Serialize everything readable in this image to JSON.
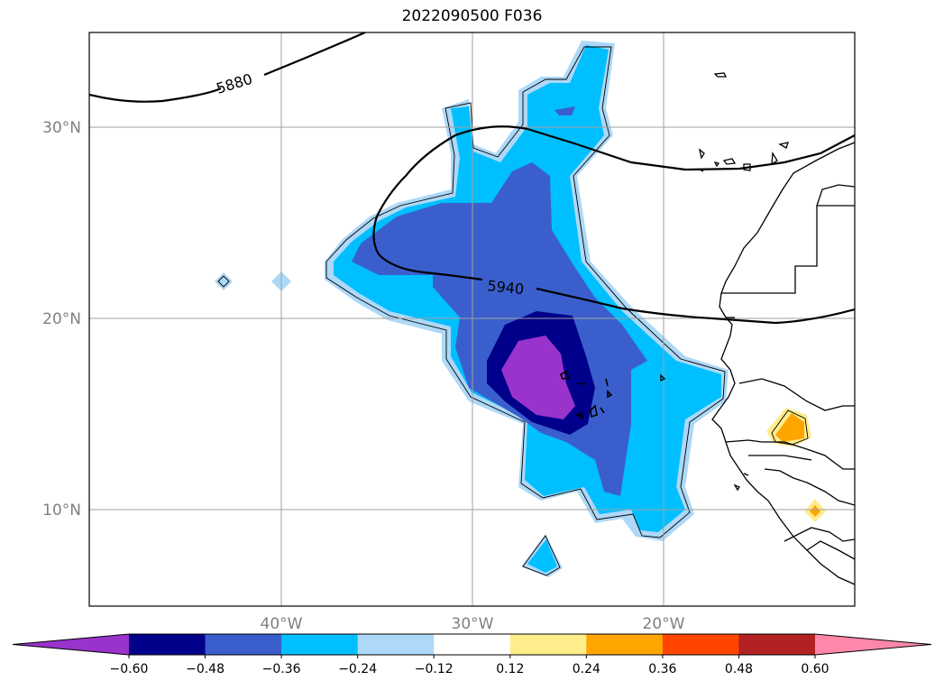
{
  "title": "2022090500 F036",
  "map": {
    "lat_labels": [
      "30°N",
      "20°N",
      "10°N"
    ],
    "lon_labels": [
      "40°W",
      "30°W",
      "20°W"
    ],
    "contour_labels": [
      "5880",
      "5940"
    ]
  },
  "colorbar": {
    "tick_labels": [
      "−0.60",
      "−0.48",
      "−0.36",
      "−0.24",
      "−0.12",
      "0.12",
      "0.24",
      "0.36",
      "0.48",
      "0.60"
    ],
    "colors": [
      "#9933cc",
      "#00008b",
      "#3a5fcd",
      "#00bfff",
      "#add8f7",
      "#ffffff",
      "#ffec8b",
      "#ffa500",
      "#ff4500",
      "#b22222",
      "#ff88aa"
    ],
    "extend": "both"
  },
  "colors": {
    "fill_purple": "#9933cc",
    "fill_navy": "#00008b",
    "fill_royal": "#3a5fcd",
    "fill_sky": "#00bfff",
    "fill_light": "#add8f7",
    "fill_yellow": "#ffec8b",
    "fill_orange": "#ffa500"
  }
}
